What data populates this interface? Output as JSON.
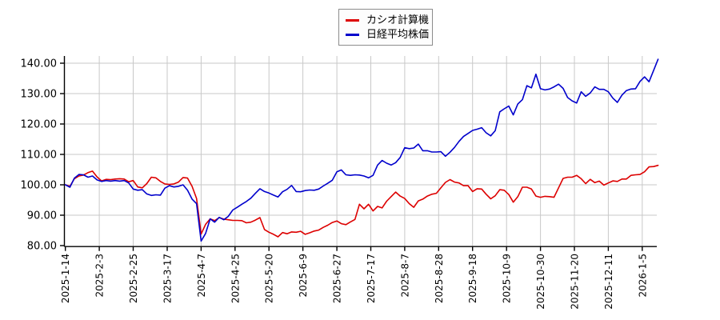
{
  "legend": {
    "items": [
      {
        "label": "カシオ計算機",
        "color": "#dd0000"
      },
      {
        "label": "日経平均株価",
        "color": "#0000cc"
      }
    ]
  },
  "chart_data": {
    "type": "line",
    "title": "",
    "legend_position": "top-center",
    "grid": true,
    "grid_color": "#c8c8c8",
    "axis_color": "#000000",
    "x_axis": {
      "kind": "trading-day dates",
      "tick_step_points": 15,
      "tick_labels": [
        "2025-1-14",
        "2025-2-3",
        "2025-2-25",
        "2025-3-17",
        "2025-4-7",
        "2025-4-25",
        "2025-5-20",
        "2025-6-9",
        "2025-6-27",
        "2025-7-17",
        "2025-8-7",
        "2025-8-28",
        "2025-9-18",
        "2025-10-9",
        "2025-10-30",
        "2025-11-20",
        "2025-12-11",
        "2026-1-5"
      ]
    },
    "y_axis": {
      "min": 80,
      "max": 142.4,
      "tick_values": [
        80,
        90,
        100,
        110,
        120,
        130,
        140
      ],
      "tick_labels": [
        "80.00",
        "90.00",
        "100.00",
        "110.00",
        "120.00",
        "130.00",
        "140.00"
      ]
    },
    "baseline_value": 100,
    "x_step": 2,
    "series": [
      {
        "name": "カシオ計算機",
        "color": "#dd0000",
        "values": [
          100.0,
          99.5,
          102.0,
          102.9,
          103.2,
          104.0,
          104.5,
          102.6,
          101.3,
          101.8,
          101.7,
          101.9,
          102.0,
          101.9,
          101.0,
          101.4,
          99.3,
          99.0,
          100.4,
          102.5,
          102.3,
          101.1,
          100.3,
          100.1,
          100.3,
          100.9,
          102.4,
          102.2,
          99.5,
          95.5,
          83.8,
          87.0,
          88.8,
          88.2,
          89.2,
          88.7,
          88.5,
          88.3,
          88.3,
          88.2,
          87.5,
          87.7,
          88.4,
          89.2,
          85.3,
          84.4,
          83.7,
          82.9,
          84.3,
          83.9,
          84.5,
          84.4,
          84.7,
          83.7,
          84.2,
          84.8,
          85.1,
          86.0,
          86.7,
          87.6,
          88.1,
          87.2,
          86.9,
          87.8,
          88.6,
          93.6,
          92.1,
          93.6,
          91.4,
          92.9,
          92.4,
          94.6,
          96.1,
          97.6,
          96.3,
          95.5,
          93.8,
          92.6,
          94.7,
          95.3,
          96.3,
          96.9,
          97.2,
          99.0,
          100.8,
          101.7,
          100.9,
          100.6,
          99.7,
          99.7,
          97.8,
          98.7,
          98.6,
          96.9,
          95.4,
          96.4,
          98.4,
          98.2,
          96.8,
          94.3,
          96.1,
          99.2,
          99.2,
          98.6,
          96.3,
          95.9,
          96.2,
          96.1,
          95.9,
          99.0,
          102.1,
          102.5,
          102.5,
          103.1,
          102.0,
          100.4,
          101.8,
          100.7,
          101.2,
          99.9,
          100.6,
          101.3,
          101.1,
          101.9,
          101.9,
          103.1,
          103.3,
          103.4,
          104.3,
          105.9,
          106.0,
          106.4
        ]
      },
      {
        "name": "日経平均株価",
        "color": "#0000cc",
        "values": [
          100.0,
          99.2,
          102.2,
          103.4,
          103.3,
          102.5,
          102.9,
          101.6,
          101.1,
          101.4,
          101.2,
          101.4,
          101.2,
          101.4,
          100.6,
          98.6,
          98.2,
          98.4,
          97.0,
          96.5,
          96.7,
          96.6,
          98.9,
          99.7,
          99.3,
          99.5,
          100.0,
          98.2,
          95.3,
          93.8,
          81.5,
          84.0,
          88.8,
          87.7,
          89.3,
          88.5,
          89.6,
          91.7,
          92.6,
          93.6,
          94.5,
          95.6,
          97.2,
          98.7,
          97.8,
          97.3,
          96.6,
          96.0,
          97.7,
          98.5,
          99.8,
          97.8,
          97.7,
          98.1,
          98.3,
          98.2,
          98.6,
          99.6,
          100.5,
          101.5,
          104.3,
          104.9,
          103.3,
          103.1,
          103.3,
          103.2,
          102.9,
          102.3,
          103.1,
          106.5,
          108.0,
          107.1,
          106.5,
          107.3,
          109.0,
          112.2,
          111.9,
          112.1,
          113.4,
          111.2,
          111.2,
          110.8,
          110.8,
          110.9,
          109.4,
          110.7,
          112.3,
          114.3,
          115.9,
          116.9,
          117.9,
          118.3,
          118.8,
          117.1,
          116.1,
          117.8,
          124.0,
          125.0,
          125.9,
          123.0,
          126.6,
          128.0,
          132.6,
          131.9,
          136.4,
          131.6,
          131.2,
          131.5,
          132.2,
          133.1,
          131.7,
          128.7,
          127.6,
          126.9,
          130.6,
          129.1,
          130.2,
          132.2,
          131.4,
          131.4,
          130.6,
          128.5,
          127.1,
          129.5,
          131.0,
          131.5,
          131.6,
          134.0,
          135.5,
          133.9,
          137.6,
          141.3
        ]
      }
    ]
  }
}
